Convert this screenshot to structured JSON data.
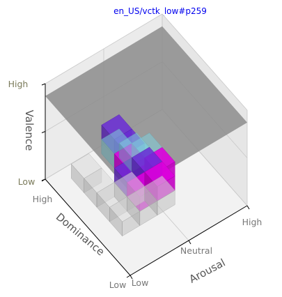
{
  "chart_data": {
    "type": "3d-voxel",
    "title": "en_US/vctk_low#p259",
    "axes": {
      "arousal": {
        "label": "Arousal",
        "ticks": [
          "Low",
          "Neutral",
          "High"
        ]
      },
      "dominance": {
        "label": "Dominance",
        "ticks": [
          "Low",
          "High"
        ]
      },
      "valence": {
        "label": "Valence",
        "ticks": [
          "Low",
          "High"
        ]
      }
    },
    "grid": true,
    "surfaces": [
      {
        "name": "",
        "color": "#8c8c8c",
        "arousal": [
          0.0,
          1.0
        ],
        "dominance": [
          0.0,
          1.0
        ],
        "valence": 0.87
      }
    ],
    "voxel_groups": [
      {
        "color": "#d9d9d9",
        "opacity": 0.55,
        "cells": [
          [
            0.15,
            0.3,
            0.0
          ],
          [
            0.3,
            0.3,
            0.0
          ],
          [
            0.45,
            0.3,
            0.0
          ],
          [
            0.15,
            0.45,
            0.0
          ],
          [
            0.3,
            0.45,
            0.0
          ],
          [
            0.15,
            0.6,
            0.0
          ],
          [
            0.15,
            0.75,
            0.0
          ]
        ]
      },
      {
        "color": "#7fd0dc",
        "opacity": 0.55,
        "cells": [
          [
            0.3,
            0.45,
            0.3
          ],
          [
            0.45,
            0.45,
            0.3
          ],
          [
            0.3,
            0.6,
            0.3
          ],
          [
            0.45,
            0.6,
            0.15
          ],
          [
            0.3,
            0.3,
            0.45
          ]
        ]
      },
      {
        "color": "#6a2bd6",
        "opacity": 0.85,
        "cells": [
          [
            0.3,
            0.45,
            0.45
          ],
          [
            0.3,
            0.6,
            0.45
          ],
          [
            0.3,
            0.45,
            0.15
          ],
          [
            0.45,
            0.45,
            0.15
          ]
        ]
      },
      {
        "color": "#dd00dd",
        "opacity": 0.9,
        "cells": [
          [
            0.3,
            0.3,
            0.3
          ],
          [
            0.45,
            0.3,
            0.3
          ],
          [
            0.3,
            0.3,
            0.15
          ],
          [
            0.45,
            0.3,
            0.15
          ],
          [
            0.3,
            0.45,
            0.3
          ]
        ]
      }
    ]
  }
}
